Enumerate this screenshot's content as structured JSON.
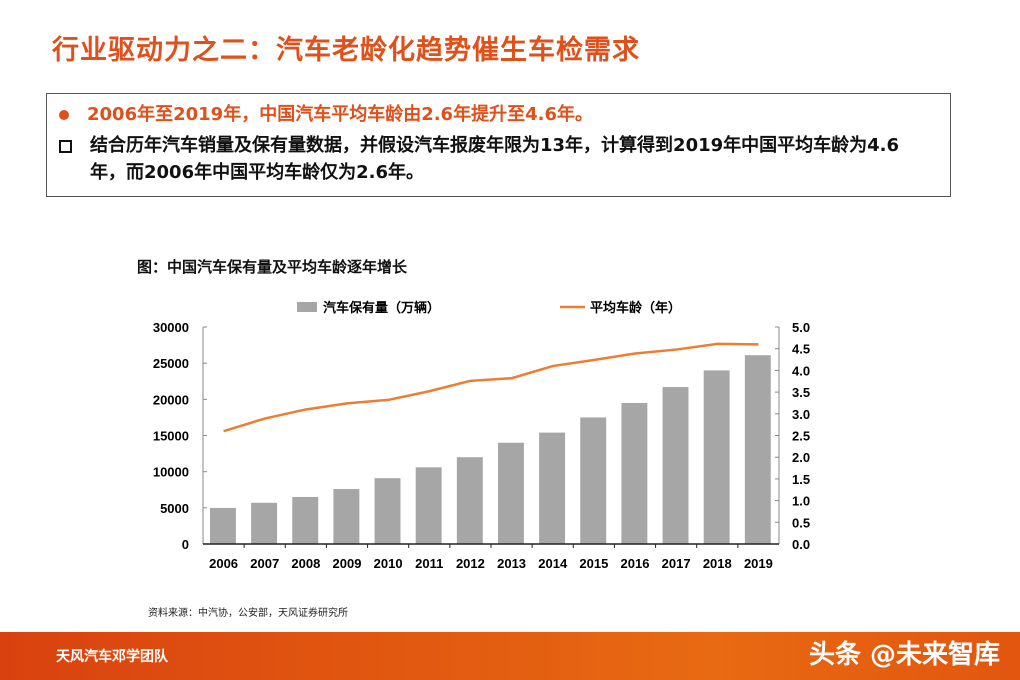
{
  "title": "行业驱动力之二：汽车老龄化趋势催生车检需求",
  "bullets": [
    "2006年至2019年，中国汽车平均车龄由2.6年提升至4.6年。",
    "结合历年汽车销量及保有量数据，并假设汽车报废年限为13年，计算得到2019年中国平均车龄为4.6年，而2006年中国平均车龄仅为2.6年。"
  ],
  "source": "资料来源：中汽协，公安部，天风证券研究所",
  "footer": {
    "team": "天风汽车邓学团队",
    "watermark": "头条 @未来智库"
  },
  "colors": {
    "accent": "#e0501b",
    "bar": "#a6a6a6",
    "line": "#ed7d31"
  },
  "chart_data": {
    "type": "bar+line",
    "title": "图：中国汽车保有量及平均车龄逐年增长",
    "categories": [
      "2006",
      "2007",
      "2008",
      "2009",
      "2010",
      "2011",
      "2012",
      "2013",
      "2014",
      "2015",
      "2016",
      "2017",
      "2018",
      "2019"
    ],
    "series": [
      {
        "name": "汽车保有量（万辆）",
        "type": "bar",
        "axis": "left",
        "values": [
          4985,
          5697,
          6500,
          7600,
          9100,
          10600,
          12000,
          14000,
          15400,
          17500,
          19500,
          21700,
          24000,
          26100
        ]
      },
      {
        "name": "平均车龄（年）",
        "type": "line",
        "axis": "right",
        "values": [
          2.6,
          2.89,
          3.1,
          3.24,
          3.32,
          3.52,
          3.76,
          3.82,
          4.1,
          4.24,
          4.39,
          4.48,
          4.61,
          4.6
        ]
      }
    ],
    "ylim_left": [
      0,
      30000
    ],
    "yticks_left": [
      "0",
      "5000",
      "10000",
      "15000",
      "20000",
      "25000",
      "30000"
    ],
    "ylim_right": [
      0,
      5
    ],
    "yticks_right": [
      "0.0",
      "0.5",
      "1.0",
      "1.5",
      "2.0",
      "2.5",
      "3.0",
      "3.5",
      "4.0",
      "4.5",
      "5.0"
    ],
    "grid": false,
    "legend": "top"
  }
}
